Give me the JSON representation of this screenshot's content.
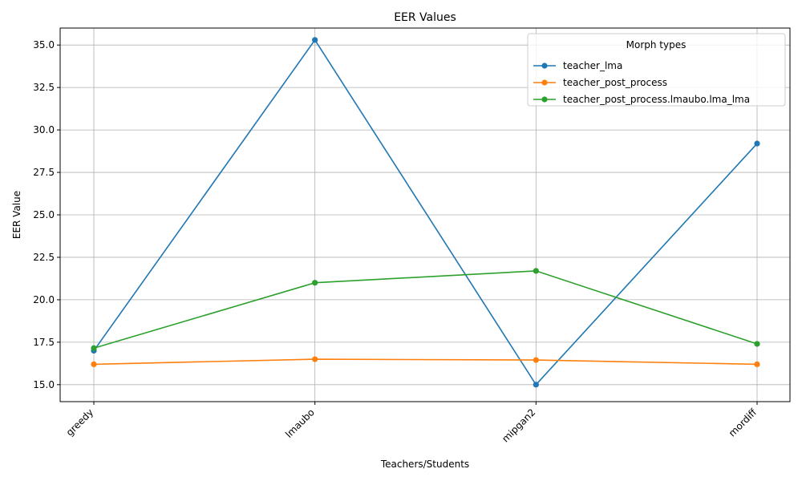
{
  "chart_data": {
    "type": "line",
    "title": "EER Values",
    "xlabel": "Teachers/Students",
    "ylabel": "EER Value",
    "categories": [
      "greedy",
      "lmaubo",
      "mipgan2",
      "mordiff"
    ],
    "ylim": [
      14.0,
      36.0
    ],
    "yticks": [
      "15.0",
      "17.5",
      "20.0",
      "22.5",
      "25.0",
      "27.5",
      "30.0",
      "32.5",
      "35.0"
    ],
    "grid": true,
    "legend": {
      "title": "Morph types",
      "position": "top-right"
    },
    "series": [
      {
        "name": "teacher_lma",
        "color": "#1f77b4",
        "values": [
          17.0,
          35.3,
          15.0,
          29.2
        ]
      },
      {
        "name": "teacher_post_process",
        "color": "#ff7f0e",
        "values": [
          16.2,
          16.5,
          16.45,
          16.2
        ]
      },
      {
        "name": "teacher_post_process.lmaubo.lma_lma",
        "color": "#2ca02c",
        "values": [
          17.15,
          21.0,
          21.7,
          17.4
        ]
      }
    ]
  }
}
